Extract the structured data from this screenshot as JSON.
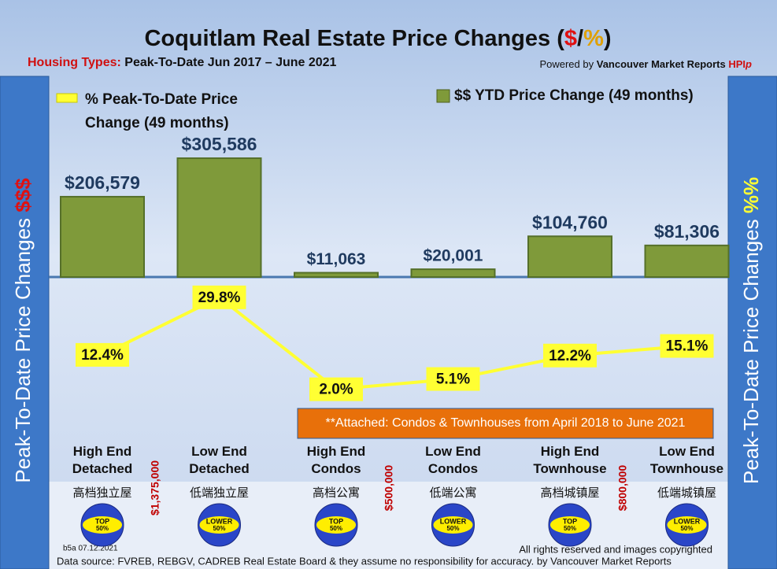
{
  "chart_data": {
    "type": "combo",
    "title": [
      "Coquitlam Real Estate Price Changes (",
      "$",
      "/",
      "%",
      ")"
    ],
    "subtitle": [
      "Housing Types:",
      "Peak-To-Date Jun 2017 – June 2021"
    ],
    "credit": [
      "Powered by",
      "Vancouver Market Reports",
      "HPI",
      "p"
    ],
    "left_axis_label": [
      "Peak-To-Date Price Changes",
      "$$$"
    ],
    "right_axis_label": [
      "Peak-To-Date  Price  Changes",
      "%%"
    ],
    "categories": [
      "High End Detached",
      "Low End Detached",
      "High End Condos",
      "Low End Condos",
      "High End Townhouse",
      "Low End Townhouse"
    ],
    "chinese_labels": [
      "高档独立屋",
      "低端独立屋",
      "高档公寓",
      "低端公寓",
      "高档城镇屋",
      "低端城镇屋"
    ],
    "thresholds": [
      "$1,375,000",
      "$500,000",
      "$800,000"
    ],
    "badges": [
      [
        "TOP",
        "50%"
      ],
      [
        "LOWER",
        "50%"
      ],
      [
        "TOP",
        "50%"
      ],
      [
        "LOWER",
        "50%"
      ],
      [
        "TOP",
        "50%"
      ],
      [
        "LOWER",
        "50%"
      ]
    ],
    "series": [
      {
        "name": "$$ YTD Price Change (49 months)",
        "type": "bar",
        "color": "#7f9a3a",
        "values": [
          206579,
          305586,
          11063,
          20001,
          104760,
          81306
        ],
        "value_labels": [
          "$206,579",
          "$305,586",
          "$11,063",
          "$20,001",
          "$104,760",
          "$81,306"
        ]
      },
      {
        "name": "% Peak-To-Date Price Change (49 months)",
        "type": "line",
        "color": "#ffff33",
        "values": [
          12.4,
          29.8,
          2.0,
          5.1,
          12.2,
          15.1
        ],
        "value_labels": [
          "12.4%",
          "29.8%",
          "2.0%",
          "5.1%",
          "12.2%",
          "15.1%"
        ]
      }
    ],
    "note": "**Attached: Condos & Townhouses from April 2018 to June 2021",
    "version": "b5a 07.12.2021",
    "rights": "All rights reserved and  images copyrighted",
    "source": "Data source: FVREB, REBGV, CADREB Real Estate Board & they assume no responsibility for accuracy. by Vancouver Market Reports"
  }
}
